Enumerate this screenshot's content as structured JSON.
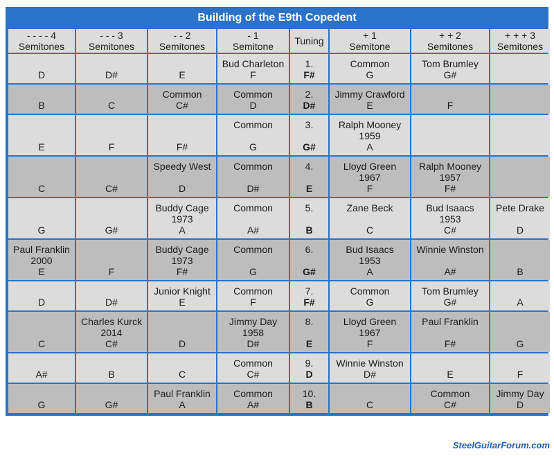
{
  "title": "Building of the E9th Copedent",
  "columns": [
    {
      "top": "- - - - 4",
      "bottom": "Semitones"
    },
    {
      "top": "- - - 3",
      "bottom": "Semitones"
    },
    {
      "top": "- - 2",
      "bottom": "Semitones"
    },
    {
      "top": "- 1",
      "bottom": "Semitone"
    },
    {
      "top": "Tuning",
      "bottom": ""
    },
    {
      "top": "+ 1",
      "bottom": "Semitone"
    },
    {
      "top": "+ + 2",
      "bottom": "Semitones"
    },
    {
      "top": "+ + + 3",
      "bottom": "Semitones"
    }
  ],
  "rows": [
    [
      [
        "",
        "D"
      ],
      [
        "",
        "D#"
      ],
      [
        "",
        "E"
      ],
      [
        "Bud Charleton",
        "F"
      ],
      [
        "1.",
        "F#"
      ],
      [
        "Common",
        "G"
      ],
      [
        "Tom Brumley",
        "G#"
      ],
      [
        "",
        ""
      ]
    ],
    [
      [
        "",
        "B"
      ],
      [
        "",
        "C"
      ],
      [
        "Common",
        "C#"
      ],
      [
        "Common",
        "D"
      ],
      [
        "2.",
        "D#"
      ],
      [
        "Jimmy Crawford",
        "E"
      ],
      [
        "",
        "F"
      ],
      [
        "",
        ""
      ]
    ],
    [
      [
        "",
        "E"
      ],
      [
        "",
        "F"
      ],
      [
        "",
        "F#"
      ],
      [
        "Common",
        "G"
      ],
      [
        "3.",
        "G#"
      ],
      [
        "Ralph Mooney\n1959",
        "A"
      ],
      [
        "",
        ""
      ],
      [
        "",
        ""
      ]
    ],
    [
      [
        "",
        "C"
      ],
      [
        "",
        "C#"
      ],
      [
        "Speedy West",
        "D"
      ],
      [
        "Common",
        "D#"
      ],
      [
        "4.",
        "E"
      ],
      [
        "Lloyd Green\n1967",
        "F"
      ],
      [
        "Ralph Mooney\n1957",
        "F#"
      ],
      [
        "",
        ""
      ]
    ],
    [
      [
        "",
        "G"
      ],
      [
        "",
        "G#"
      ],
      [
        "Buddy Cage\n1973",
        "A"
      ],
      [
        "Common",
        "A#"
      ],
      [
        "5.",
        "B"
      ],
      [
        "Zane Beck",
        "C"
      ],
      [
        "Bud Isaacs\n1953",
        "C#"
      ],
      [
        "Pete Drake",
        "D"
      ]
    ],
    [
      [
        "Paul Franklin\n2000",
        "E"
      ],
      [
        "",
        "F"
      ],
      [
        "Buddy Cage\n1973",
        "F#"
      ],
      [
        "Common",
        "G"
      ],
      [
        "6.",
        "G#"
      ],
      [
        "Bud Isaacs\n1953",
        "A"
      ],
      [
        "Winnie Winston",
        "A#"
      ],
      [
        "",
        "B"
      ]
    ],
    [
      [
        "",
        "D"
      ],
      [
        "",
        "D#"
      ],
      [
        "Junior Knight",
        "E"
      ],
      [
        "Common",
        "F"
      ],
      [
        "7.",
        "F#"
      ],
      [
        "Common",
        "G"
      ],
      [
        "Tom Brumley",
        "G#"
      ],
      [
        "",
        "A"
      ]
    ],
    [
      [
        "",
        "C"
      ],
      [
        "Charles Kurck\n2014",
        "C#"
      ],
      [
        "",
        "D"
      ],
      [
        "Jimmy Day\n1958",
        "D#"
      ],
      [
        "8.",
        "E"
      ],
      [
        "Lloyd Green\n1967",
        "F"
      ],
      [
        "Paul Franklin",
        "F#"
      ],
      [
        "",
        "G"
      ]
    ],
    [
      [
        "",
        "A#"
      ],
      [
        "",
        "B"
      ],
      [
        "",
        "C"
      ],
      [
        "Common",
        "C#"
      ],
      [
        "9.",
        "D"
      ],
      [
        "Winnie Winston",
        "D#"
      ],
      [
        "",
        "E"
      ],
      [
        "",
        "F"
      ]
    ],
    [
      [
        "",
        "G"
      ],
      [
        "",
        "G#"
      ],
      [
        "Paul Franklin",
        "A"
      ],
      [
        "Common",
        "A#"
      ],
      [
        "10.",
        "B"
      ],
      [
        "",
        "C"
      ],
      [
        "Common",
        "C#"
      ],
      [
        "Jimmy Day",
        "D"
      ]
    ]
  ],
  "footer": "SteelGuitarForum.com",
  "colors": {
    "header_blue": "#2a73c8",
    "cell_light": "#dcdcdc",
    "cell_dark": "#bdbdbd"
  }
}
